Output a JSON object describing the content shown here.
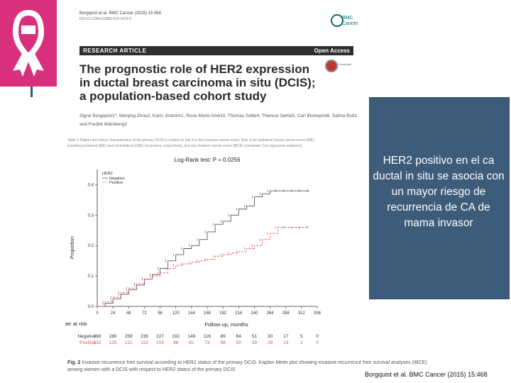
{
  "slide": {
    "panel_text": "HER2 positivo en el ca ductal in situ se asocia con un mayor riesgo de recurrencia de CA de mama invasor",
    "source": "Borgquist et al. BMC Cancer (2015) 15:468",
    "logo_color": "#d9307d",
    "panel_color": "#3d5c7a"
  },
  "paper": {
    "citation": "Borgquist et al. BMC Cancer (2015) 15:468",
    "doi": "DOI 10.1186/s12885-015-1479-3",
    "journal_logo": "BMC Cancer",
    "article_type": "RESEARCH ARTICLE",
    "access": "Open Access",
    "crossmark": "CrossMark",
    "title": "The prognostic role of HER2 expression in ductal breast carcinoma in situ (DCIS); a population-based cohort study",
    "authors": "Signe Borgquist1*, Wenjing Zhou2, Karin Jirström1, Rose-Marie Amini3, Thomas Sollie4, Therese Sørlie5, Carl Blomqvist6, Salma Butt1 and Fredrik Wärnberg2",
    "table_caption": "Table 2 Patient and tumor characteristics of the primary DCIS in relation to risk of a first invasive cancer event. Risk of an ipsilateral breast cancer event (IBE) including ipsilateral (iBE) and contralateral (cBE) recurrence, respectively, and any invasive cancer event (IBCE) (univariate Cox regression analyses)",
    "fig_caption_label": "Fig. 2",
    "fig_caption_text": "Invasive recurrence free survival according to HER2 status of the primary DCIS. Kaplan Meier plot showing invasive recurrence free survival analyses (IBCE) among women with a DCIS with respect to HER2 status of the primary DCIS"
  },
  "chart_data": {
    "type": "line",
    "title": "Log-Rank test: P = 0.0256",
    "xlabel": "Follow-up, months",
    "ylabel": "Proportion",
    "xlim": [
      0,
      336
    ],
    "ylim": [
      0,
      0.45
    ],
    "x_ticks": [
      0,
      24,
      48,
      72,
      96,
      120,
      144,
      168,
      192,
      216,
      240,
      264,
      288,
      312,
      336
    ],
    "y_ticks": [
      0.0,
      0.1,
      0.2,
      0.3,
      0.4
    ],
    "legend_title": "HER2",
    "legend_position": "top-left",
    "grid": false,
    "series": [
      {
        "name": "Negative",
        "color": "#555555",
        "x": [
          0,
          12,
          24,
          36,
          48,
          60,
          72,
          84,
          96,
          108,
          120,
          132,
          144,
          156,
          168,
          180,
          192,
          204,
          216,
          228,
          240,
          252,
          264,
          276,
          288,
          300,
          312,
          324
        ],
        "y": [
          0.0,
          0.01,
          0.025,
          0.04,
          0.055,
          0.07,
          0.09,
          0.105,
          0.125,
          0.15,
          0.17,
          0.19,
          0.2,
          0.22,
          0.245,
          0.27,
          0.28,
          0.3,
          0.32,
          0.33,
          0.36,
          0.37,
          0.38,
          0.38,
          0.38,
          0.38,
          0.38,
          0.38
        ]
      },
      {
        "name": "Positive",
        "color": "#d9534f",
        "x": [
          0,
          12,
          24,
          36,
          48,
          60,
          72,
          84,
          96,
          108,
          120,
          132,
          144,
          156,
          168,
          180,
          192,
          204,
          216,
          228,
          240,
          252,
          264,
          276,
          288,
          300,
          312,
          324
        ],
        "y": [
          0.0,
          0.015,
          0.03,
          0.045,
          0.06,
          0.075,
          0.09,
          0.1,
          0.11,
          0.125,
          0.135,
          0.14,
          0.145,
          0.15,
          0.155,
          0.165,
          0.17,
          0.175,
          0.18,
          0.19,
          0.2,
          0.22,
          0.24,
          0.26,
          0.26,
          0.26,
          0.26,
          0.26
        ]
      }
    ],
    "risk_table": {
      "header": "Number at risk",
      "times": [
        0,
        24,
        48,
        72,
        96,
        120,
        144,
        168,
        192,
        216,
        240,
        264,
        288,
        312,
        336
      ],
      "rows": [
        {
          "label": "Negative",
          "color": "#333333",
          "values": [
            "288",
            "280",
            "258",
            "239",
            "227",
            "192",
            "149",
            "116",
            "89",
            "64",
            "51",
            "30",
            "17",
            "5",
            "0"
          ]
        },
        {
          "label": "Positive",
          "color": "#d9534f",
          "values": [
            "132",
            "125",
            "121",
            "113",
            "105",
            "96",
            "82",
            "73",
            "56",
            "50",
            "39",
            "29",
            "13",
            "1",
            "0"
          ]
        }
      ]
    }
  }
}
